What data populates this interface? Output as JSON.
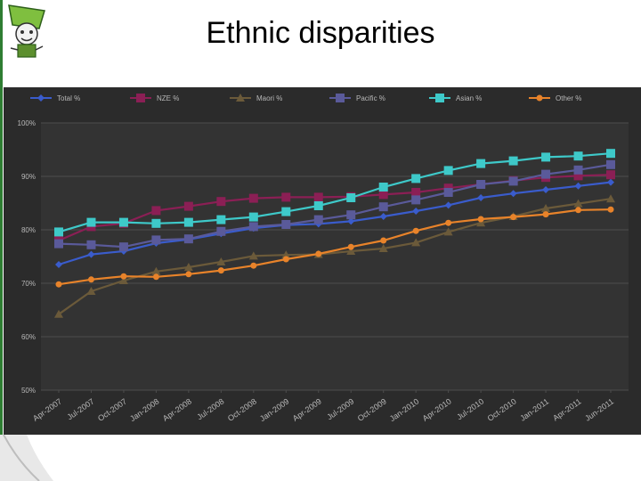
{
  "slide": {
    "title": "Ethnic disparities"
  },
  "colors": {
    "background": "#2b2b2b",
    "grid": "#4d4d4d",
    "axis_text": "#b8b8b8",
    "deco_green": "#2e7d32"
  },
  "chart_data": {
    "type": "line",
    "title": "",
    "xlabel": "",
    "ylabel": "",
    "ylim": [
      50,
      100
    ],
    "yticks": [
      "50%",
      "60%",
      "70%",
      "80%",
      "90%",
      "100%"
    ],
    "grid": true,
    "legend_position": "top",
    "categories": [
      "Apr-2007",
      "Jul-2007",
      "Oct-2007",
      "Jan-2008",
      "Apr-2008",
      "Jul-2008",
      "Oct-2008",
      "Jan-2009",
      "Apr-2009",
      "Jul-2009",
      "Oct-2009",
      "Jan-2010",
      "Apr-2010",
      "Jul-2010",
      "Oct-2010",
      "Jan-2011",
      "Apr-2011",
      "Jun-2011"
    ],
    "series": [
      {
        "name": "Total %",
        "color": "#3a5ccc",
        "marker": "diamond",
        "values": [
          73.5,
          75.4,
          76.0,
          77.5,
          78.2,
          79.3,
          80.3,
          80.9,
          81.1,
          81.6,
          82.5,
          83.5,
          84.6,
          86.0,
          86.8,
          87.5,
          88.2,
          88.9
        ]
      },
      {
        "name": "NZE %",
        "color": "#8b1f55",
        "marker": "square",
        "values": [
          78.0,
          80.6,
          81.2,
          83.6,
          84.4,
          85.3,
          85.9,
          86.1,
          86.1,
          86.2,
          86.6,
          87.0,
          87.8,
          88.5,
          89.2,
          89.8,
          90.1,
          90.3
        ]
      },
      {
        "name": "Maori %",
        "color": "#6b5a3a",
        "marker": "triangle",
        "values": [
          64.2,
          68.5,
          70.5,
          72.2,
          73.0,
          74.0,
          75.1,
          75.3,
          75.4,
          76.0,
          76.5,
          77.6,
          79.6,
          81.3,
          82.5,
          84.0,
          84.9,
          85.8
        ]
      },
      {
        "name": "Pacific %",
        "color": "#5a5a9a",
        "marker": "square",
        "values": [
          77.4,
          77.2,
          76.8,
          78.1,
          78.3,
          79.7,
          80.6,
          81.0,
          81.9,
          82.8,
          84.3,
          85.6,
          87.0,
          88.5,
          89.1,
          90.4,
          91.2,
          92.2
        ]
      },
      {
        "name": "Asian %",
        "color": "#3ec9c9",
        "marker": "square",
        "values": [
          79.6,
          81.4,
          81.4,
          81.2,
          81.4,
          81.9,
          82.4,
          83.4,
          84.5,
          86.0,
          88.0,
          89.6,
          91.1,
          92.4,
          92.9,
          93.6,
          93.8,
          94.3
        ]
      },
      {
        "name": "Other %",
        "color": "#e8832a",
        "marker": "circle",
        "values": [
          69.8,
          70.7,
          71.3,
          71.2,
          71.7,
          72.4,
          73.3,
          74.5,
          75.5,
          76.8,
          78.0,
          79.8,
          81.3,
          82.0,
          82.4,
          82.9,
          83.7,
          83.8
        ]
      }
    ]
  }
}
